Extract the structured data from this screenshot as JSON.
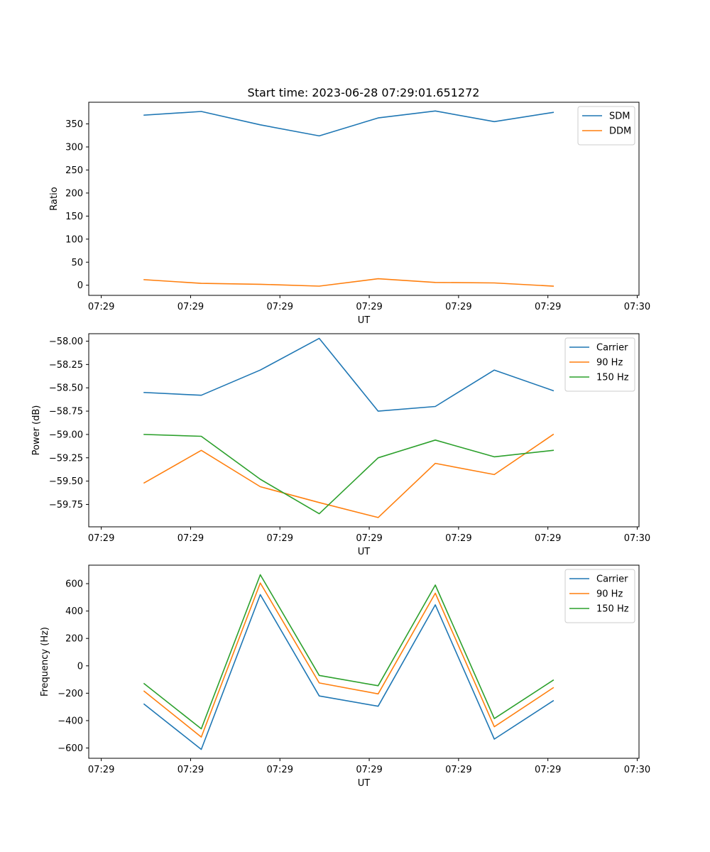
{
  "figure": {
    "title": "Start time: 2023-06-28 07:29:01.651272"
  },
  "chart_data": [
    {
      "type": "line",
      "title": "Start time: 2023-06-28 07:29:01.651272",
      "xlabel": "UT",
      "ylabel": "Ratio",
      "x_tick_labels": [
        "07:29",
        "07:29",
        "07:29",
        "07:29",
        "07:29",
        "07:29",
        "07:30"
      ],
      "x_ticks_s": [
        0,
        5,
        10,
        15,
        20,
        25,
        30
      ],
      "xlim_s": [
        -0.7,
        30.1
      ],
      "x_s": [
        2.4,
        5.6,
        8.9,
        12.2,
        15.5,
        18.7,
        22.0,
        25.3
      ],
      "y_ticks": [
        0,
        50,
        100,
        150,
        200,
        250,
        300,
        350
      ],
      "ylim": [
        -22,
        397
      ],
      "grid": false,
      "legend": "top-right",
      "series": [
        {
          "name": "SDM",
          "color": "#1f77b4",
          "values": [
            369,
            377,
            348,
            324,
            363,
            378,
            355,
            375
          ]
        },
        {
          "name": "DDM",
          "color": "#ff7f0e",
          "values": [
            12,
            4,
            2,
            -2,
            14,
            6,
            5,
            -2
          ]
        }
      ]
    },
    {
      "type": "line",
      "xlabel": "UT",
      "ylabel": "Power (dB)",
      "x_tick_labels": [
        "07:29",
        "07:29",
        "07:29",
        "07:29",
        "07:29",
        "07:29",
        "07:30"
      ],
      "x_ticks_s": [
        0,
        5,
        10,
        15,
        20,
        25,
        30
      ],
      "xlim_s": [
        -0.7,
        30.1
      ],
      "x_s": [
        2.4,
        5.6,
        8.9,
        12.2,
        15.5,
        18.7,
        22.0,
        25.3
      ],
      "y_ticks": [
        -59.75,
        -59.5,
        -59.25,
        -59.0,
        -58.75,
        -58.5,
        -58.25,
        -58.0
      ],
      "y_tick_labels": [
        "−59.75",
        "−59.50",
        "−59.25",
        "−59.00",
        "−58.75",
        "−58.50",
        "−58.25",
        "−58.00"
      ],
      "ylim": [
        -59.99,
        -57.92
      ],
      "grid": false,
      "legend": "top-right",
      "series": [
        {
          "name": "Carrier",
          "color": "#1f77b4",
          "values": [
            -58.55,
            -58.58,
            -58.31,
            -57.97,
            -58.75,
            -58.7,
            -58.31,
            -58.53
          ]
        },
        {
          "name": "90 Hz",
          "color": "#ff7f0e",
          "values": [
            -59.52,
            -59.17,
            -59.56,
            -59.73,
            -59.89,
            -59.31,
            -59.43,
            -59.0
          ]
        },
        {
          "name": "150 Hz",
          "color": "#2ca02c",
          "values": [
            -59.0,
            -59.02,
            -59.48,
            -59.85,
            -59.25,
            -59.06,
            -59.24,
            -59.17
          ]
        }
      ]
    },
    {
      "type": "line",
      "xlabel": "UT",
      "ylabel": "Frequency (Hz)",
      "x_tick_labels": [
        "07:29",
        "07:29",
        "07:29",
        "07:29",
        "07:29",
        "07:29",
        "07:30"
      ],
      "x_ticks_s": [
        0,
        5,
        10,
        15,
        20,
        25,
        30
      ],
      "xlim_s": [
        -0.7,
        30.1
      ],
      "x_s": [
        2.4,
        5.6,
        8.9,
        12.2,
        15.5,
        18.7,
        22.0,
        25.3
      ],
      "y_ticks": [
        -600,
        -400,
        -200,
        0,
        200,
        400,
        600
      ],
      "y_tick_labels": [
        "−600",
        "−400",
        "−200",
        "0",
        "200",
        "400",
        "600"
      ],
      "ylim": [
        -675,
        735
      ],
      "grid": false,
      "legend": "top-right",
      "series": [
        {
          "name": "Carrier",
          "color": "#1f77b4",
          "values": [
            -280,
            -610,
            520,
            -220,
            -295,
            445,
            -535,
            -255
          ]
        },
        {
          "name": "90 Hz",
          "color": "#ff7f0e",
          "values": [
            -185,
            -520,
            605,
            -125,
            -205,
            530,
            -445,
            -160
          ]
        },
        {
          "name": "150 Hz",
          "color": "#2ca02c",
          "values": [
            -130,
            -460,
            665,
            -70,
            -145,
            590,
            -385,
            -105
          ]
        }
      ]
    }
  ]
}
